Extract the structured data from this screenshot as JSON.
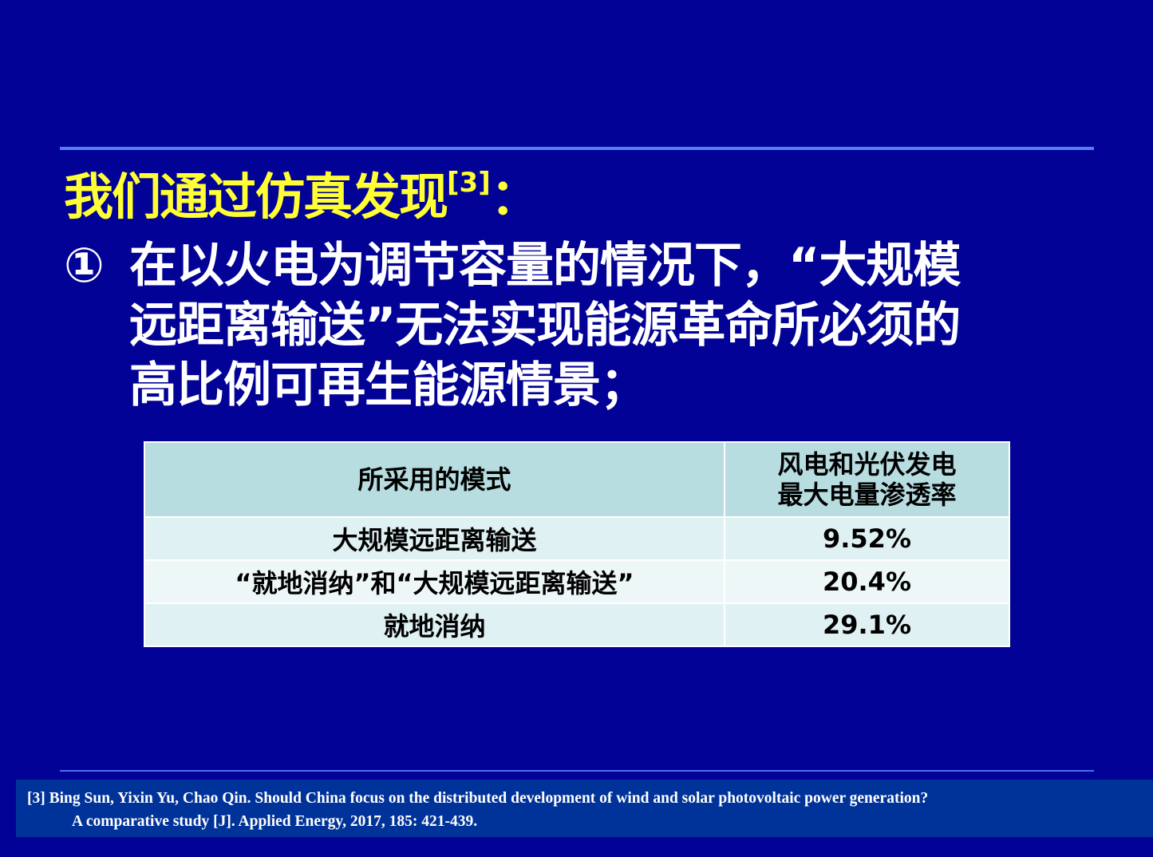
{
  "title": {
    "text": "我们通过仿真发现",
    "ref": "[3]",
    "colon": "："
  },
  "point": {
    "marker": "①",
    "lines": [
      "在以火电为调节容量的情况下，“大规模",
      "远距离输送”无法实现能源革命所必须的",
      "高比例可再生能源情景；"
    ]
  },
  "table": {
    "headers": [
      "所采用的模式",
      "风电和光伏发电",
      "最大电量渗透率"
    ],
    "rows": [
      {
        "mode": "大规模远距离输送",
        "value": "9.52%"
      },
      {
        "mode": "“就地消纳”和“大规模远距离输送”",
        "value": "20.4%"
      },
      {
        "mode": "就地消纳",
        "value": "29.1%"
      }
    ]
  },
  "reference": {
    "line1": "[3] Bing Sun,  Yixin Yu, Chao Qin. Should China focus on the distributed development of wind and solar photovoltaic power generation?",
    "line2": "A comparative study [J]. Applied Energy, 2017, 185: 421-439."
  },
  "colors": {
    "background": "#020296",
    "title": "#ffff33",
    "header_bg": "#b7dde1",
    "reference_bg": "#003399"
  }
}
